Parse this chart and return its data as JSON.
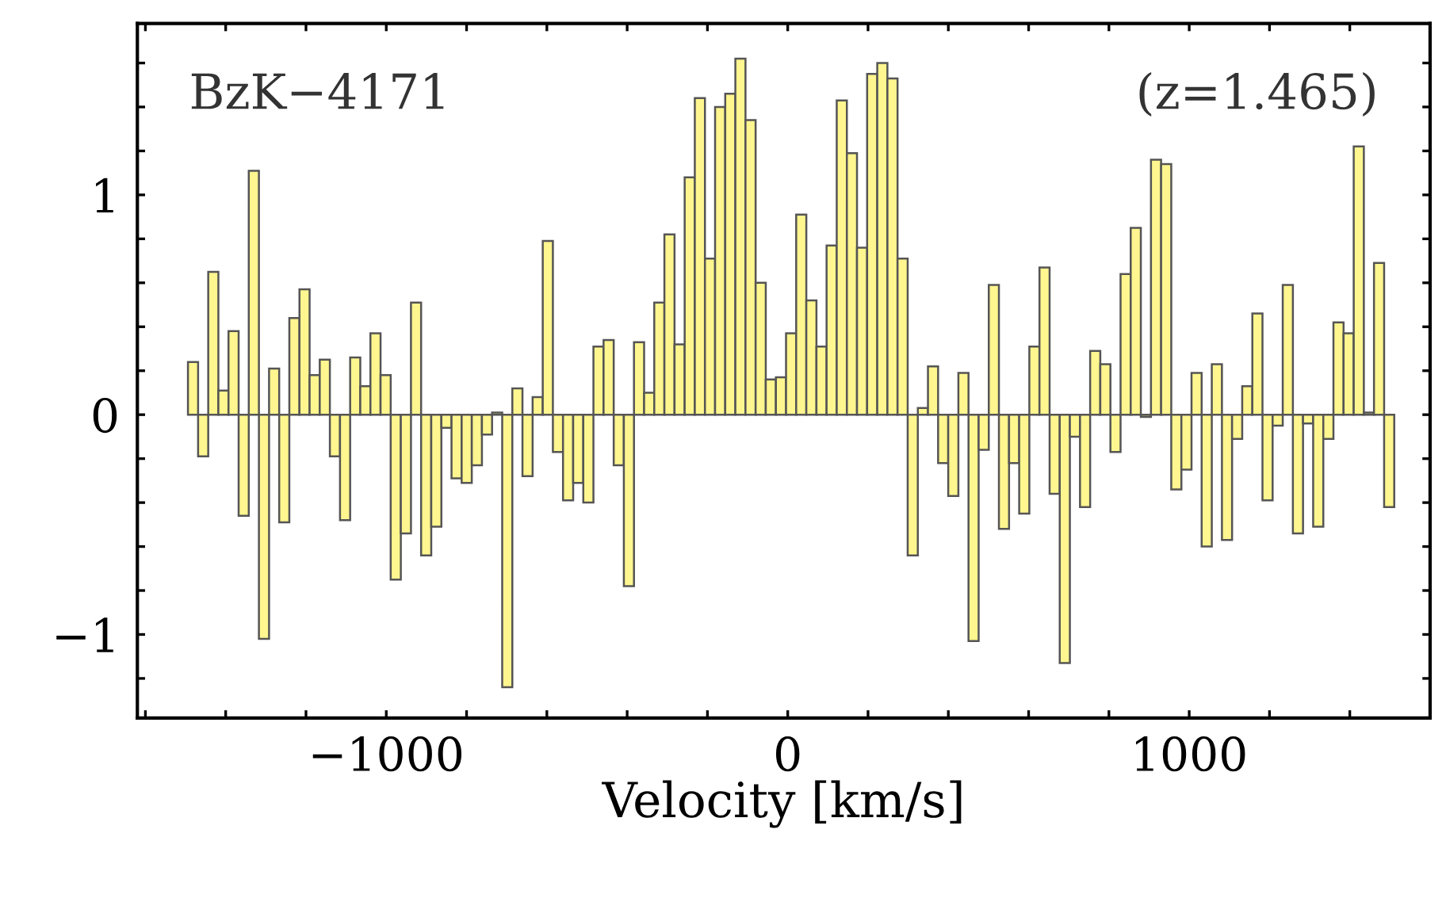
{
  "chart_data": {
    "type": "histogram",
    "xlabel": "Velocity [km/s]",
    "annotations": [
      "BzK−4171",
      "(z=1.465)"
    ],
    "color": "#fff68f",
    "bins": [
      -1494,
      -1468.75,
      -1443.5,
      -1418.25,
      -1393,
      -1367.75,
      -1342.5,
      -1317.25,
      -1292,
      -1266.75,
      -1241.5,
      -1216.25,
      -1191,
      -1165.75,
      -1140.5,
      -1115.25,
      -1090,
      -1064.75,
      -1039.5,
      -1014.25,
      -989,
      -963.75,
      -938.5,
      -913.25,
      -888,
      -862.75,
      -837.5,
      -812.25,
      -787,
      -761.75,
      -736.5,
      -711.25,
      -686,
      -660.75,
      -635.5,
      -610.25,
      -585,
      -559.75,
      -534.5,
      -509.25,
      -484,
      -458.75,
      -433.5,
      -408.25,
      -383,
      -357.75,
      -332.5,
      -307.25,
      -282,
      -256.75,
      -231.5,
      -206.25,
      -181,
      -155.75,
      -130.5,
      -105.25,
      -80,
      -54.75,
      -29.5,
      -4.25,
      21,
      46.25,
      71.5,
      96.75,
      122,
      147.25,
      172.5,
      197.75,
      223,
      248.25,
      273.5,
      298.75,
      324,
      349.25,
      374.5,
      399.75,
      425,
      450.25,
      475.5,
      500.75,
      526,
      551.25,
      576.5,
      601.75,
      627,
      652.25,
      677.5,
      702.75,
      728,
      753.25,
      778.5,
      803.75,
      829,
      854.25,
      879.5,
      904.75,
      930,
      955.25,
      980.5,
      1005.75,
      1031,
      1056.25,
      1081.5,
      1106.75,
      1132,
      1157.25,
      1182.5,
      1207.75,
      1233,
      1258.25,
      1283.5,
      1308.75,
      1334,
      1359.25,
      1384.5,
      1409.75,
      1435,
      1460.25,
      1485.5,
      1510.75
    ],
    "values": [
      0.24,
      -0.19,
      0.65,
      0.11,
      0.38,
      -0.46,
      1.11,
      -1.02,
      0.21,
      -0.49,
      0.44,
      0.57,
      0.18,
      0.25,
      -0.19,
      -0.48,
      0.26,
      0.13,
      0.37,
      0.18,
      -0.75,
      -0.54,
      0.51,
      -0.64,
      -0.51,
      -0.06,
      -0.29,
      -0.31,
      -0.23,
      -0.09,
      0.01,
      -1.24,
      0.12,
      -0.28,
      0.08,
      0.79,
      -0.17,
      -0.39,
      -0.31,
      -0.4,
      0.31,
      0.34,
      -0.23,
      -0.78,
      0.33,
      0.1,
      0.51,
      0.82,
      0.32,
      1.08,
      1.44,
      0.71,
      1.4,
      1.46,
      1.62,
      1.34,
      0.6,
      0.16,
      0.17,
      0.37,
      0.91,
      0.52,
      0.31,
      0.77,
      1.43,
      1.19,
      0.76,
      1.55,
      1.6,
      1.53,
      0.71,
      -0.64,
      0.03,
      0.22,
      -0.22,
      -0.37,
      0.19,
      -1.03,
      -0.16,
      0.59,
      -0.52,
      -0.22,
      -0.45,
      0.31,
      0.67,
      -0.36,
      -1.13,
      -0.1,
      -0.42,
      0.29,
      0.23,
      -0.17,
      0.64,
      0.85,
      -0.01,
      1.16,
      1.14,
      -0.34,
      -0.25,
      0.19,
      -0.6,
      0.23,
      -0.57,
      -0.11,
      0.13,
      0.46,
      -0.39,
      -0.05,
      0.59,
      -0.54,
      -0.04,
      -0.51,
      -0.11,
      0.42,
      0.37,
      1.22,
      0.01,
      0.69,
      -0.42
    ],
    "xlim": [
      -1620,
      1600
    ],
    "ylim": [
      -1.38,
      1.78
    ],
    "xticks": [
      {
        "value": -1600,
        "label": null
      },
      {
        "value": -1400,
        "label": null
      },
      {
        "value": -1200,
        "label": null
      },
      {
        "value": -1000,
        "label": "−1000"
      },
      {
        "value": -800,
        "label": null
      },
      {
        "value": -600,
        "label": null
      },
      {
        "value": -400,
        "label": null
      },
      {
        "value": -200,
        "label": null
      },
      0,
      {
        "value": 200,
        "label": null
      },
      {
        "value": 400,
        "label": null
      },
      {
        "value": 600,
        "label": null
      },
      {
        "value": 800,
        "label": null
      },
      1000,
      {
        "value": 1200,
        "label": null
      },
      {
        "value": 1400,
        "label": null
      }
    ],
    "yticks": [
      {
        "value": -1.2,
        "label": null
      },
      {
        "value": -1,
        "label": "−1"
      },
      {
        "value": -0.8,
        "label": null
      },
      {
        "value": -0.6,
        "label": null
      },
      {
        "value": -0.4,
        "label": null
      },
      {
        "value": -0.2,
        "label": null
      },
      0,
      {
        "value": 0.2,
        "label": null
      },
      {
        "value": 0.4,
        "label": null
      },
      {
        "value": 0.6,
        "label": null
      },
      {
        "value": 0.8,
        "label": null
      },
      1,
      {
        "value": 1.2,
        "label": null
      },
      {
        "value": 1.4,
        "label": null
      },
      {
        "value": 1.6,
        "label": null
      }
    ],
    "grid": false,
    "legend": false
  }
}
